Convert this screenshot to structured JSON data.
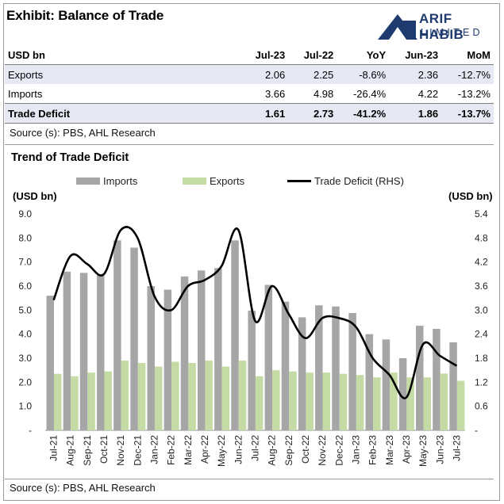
{
  "header": {
    "title": "Exhibit: Balance of Trade",
    "logo_line1": "ARIF HABIB",
    "logo_line2": "LIMITED"
  },
  "table": {
    "columns": [
      "USD bn",
      "Jul-23",
      "Jul-22",
      "YoY",
      "Jun-23",
      "MoM"
    ],
    "rows": [
      {
        "label": "Exports",
        "cells": [
          "2.06",
          "2.25",
          "-8.6%",
          "2.36",
          "-12.7%"
        ]
      },
      {
        "label": "Imports",
        "cells": [
          "3.66",
          "4.98",
          "-26.4%",
          "4.22",
          "-13.2%"
        ]
      },
      {
        "label": "Trade Deficit",
        "cells": [
          "1.61",
          "2.73",
          "-41.2%",
          "1.86",
          "-13.7%"
        ]
      }
    ]
  },
  "source_top": "Source (s): PBS, AHL Research",
  "source_bottom": "Source (s): PBS, AHL Research",
  "colors": {
    "imports": "#a6a6a6",
    "exports": "#c4dba5",
    "deficit_line": "#000000",
    "shade": "#e6e9f4",
    "logo": "#1f3a6e"
  },
  "chart_data": {
    "type": "bar",
    "title": "Trend of Trade Deficit",
    "ylabel_left": "(USD bn)",
    "ylabel_right": "(USD bn)",
    "ylim_left": [
      0,
      9
    ],
    "ylim_right": [
      0,
      5.4
    ],
    "yticks_left": [
      "-",
      "1.0",
      "2.0",
      "3.0",
      "4.0",
      "5.0",
      "6.0",
      "7.0",
      "8.0",
      "9.0"
    ],
    "yticks_right": [
      "-",
      "0.6",
      "1.2",
      "1.8",
      "2.4",
      "3.0",
      "3.6",
      "4.2",
      "4.8",
      "5.4"
    ],
    "legend_position": "top",
    "categories": [
      "Jul-21",
      "Aug-21",
      "Sep-21",
      "Oct-21",
      "Nov-21",
      "Dec-21",
      "Jan-22",
      "Feb-22",
      "Mar-22",
      "Apr-22",
      "May-22",
      "Jun-22",
      "Jul-22",
      "Aug-22",
      "Sep-22",
      "Oct-22",
      "Nov-22",
      "Dec-22",
      "Jan-23",
      "Feb-23",
      "Mar-23",
      "Apr-23",
      "May-23",
      "Jun-23",
      "Jul-23"
    ],
    "series": [
      {
        "name": "Imports",
        "kind": "bar",
        "axis": "left",
        "values": [
          5.6,
          6.6,
          6.55,
          6.45,
          7.9,
          7.6,
          6.0,
          5.85,
          6.4,
          6.65,
          6.75,
          7.9,
          4.98,
          6.05,
          5.35,
          4.7,
          5.2,
          5.15,
          4.88,
          4.0,
          3.78,
          3.0,
          4.35,
          4.22,
          3.66
        ]
      },
      {
        "name": "Exports",
        "kind": "bar",
        "axis": "left",
        "values": [
          2.35,
          2.25,
          2.4,
          2.45,
          2.9,
          2.8,
          2.65,
          2.85,
          2.8,
          2.9,
          2.65,
          2.9,
          2.25,
          2.5,
          2.45,
          2.4,
          2.4,
          2.35,
          2.3,
          2.2,
          2.4,
          2.2,
          2.2,
          2.36,
          2.06
        ]
      },
      {
        "name": "Trade Deficit (RHS)",
        "kind": "line",
        "axis": "right",
        "values": [
          3.25,
          4.35,
          4.15,
          3.9,
          5.0,
          4.8,
          3.35,
          3.0,
          3.6,
          3.75,
          4.1,
          5.0,
          2.73,
          3.6,
          2.9,
          2.3,
          2.8,
          2.8,
          2.58,
          1.8,
          1.38,
          0.82,
          2.15,
          1.86,
          1.61
        ]
      }
    ]
  }
}
